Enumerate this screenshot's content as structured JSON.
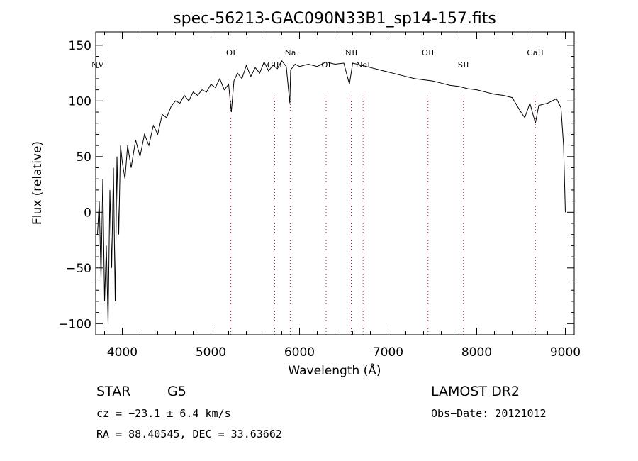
{
  "chart_data": {
    "type": "line",
    "title": "spec-56213-GAC090N33B1_sp14-157.fits",
    "xlabel": "Wavelength (Å)",
    "ylabel": "Flux (relative)",
    "xlim": [
      3700,
      9100
    ],
    "ylim": [
      -110,
      162
    ],
    "xticks": [
      4000,
      5000,
      6000,
      7000,
      8000,
      9000
    ],
    "yticks": [
      -100,
      -50,
      0,
      50,
      100,
      150
    ],
    "xtick_labels": [
      "4000",
      "5000",
      "6000",
      "7000",
      "8000",
      "9000"
    ],
    "ytick_labels": [
      "−100",
      "−50",
      "0",
      "50",
      "100",
      "150"
    ],
    "grid": false,
    "series": [
      {
        "x": [
          3720,
          3740,
          3760,
          3780,
          3800,
          3820,
          3840,
          3860,
          3880,
          3900,
          3920,
          3940,
          3960,
          3980,
          4000,
          4030,
          4060,
          4100,
          4150,
          4200,
          4250,
          4300,
          4350,
          4400,
          4450,
          4500,
          4550,
          4600,
          4650,
          4700,
          4750,
          4800,
          4850,
          4900,
          4950,
          5000,
          5050,
          5100,
          5150,
          5200,
          5230,
          5260,
          5300,
          5350,
          5400,
          5450,
          5500,
          5550,
          5600,
          5650,
          5700,
          5750,
          5800,
          5850,
          5890,
          5900,
          5950,
          6000,
          6100,
          6200,
          6300,
          6400,
          6500,
          6563,
          6600,
          6700,
          6800,
          6900,
          7000,
          7100,
          7200,
          7300,
          7400,
          7500,
          7600,
          7700,
          7800,
          7900,
          8000,
          8100,
          8200,
          8300,
          8400,
          8498,
          8542,
          8600,
          8662,
          8700,
          8800,
          8900,
          8950,
          8980,
          9000
        ],
        "y": [
          -20,
          10,
          -60,
          30,
          -80,
          -30,
          -100,
          20,
          -50,
          40,
          -80,
          50,
          -20,
          60,
          45,
          30,
          60,
          40,
          65,
          50,
          70,
          60,
          78,
          70,
          88,
          85,
          95,
          100,
          98,
          105,
          100,
          108,
          105,
          110,
          108,
          115,
          112,
          120,
          110,
          115,
          90,
          118,
          125,
          120,
          132,
          122,
          130,
          125,
          135,
          127,
          132,
          129,
          136,
          131,
          98,
          128,
          133,
          131,
          133,
          131,
          135,
          133,
          134,
          115,
          134,
          132,
          130,
          128,
          126,
          124,
          122,
          120,
          119,
          118,
          116,
          114,
          113,
          111,
          110,
          108,
          106,
          105,
          103,
          90,
          85,
          98,
          80,
          96,
          98,
          102,
          94,
          60,
          0
        ]
      }
    ],
    "line_markers": [
      {
        "label": "NV",
        "x": 3720
      },
      {
        "label": "OI",
        "x": 5225
      },
      {
        "label": "CIII",
        "x": 5720
      },
      {
        "label": "Na",
        "x": 5895
      },
      {
        "label": "OI",
        "x": 6300
      },
      {
        "label": "NII",
        "x": 6584
      },
      {
        "label": "NeI",
        "x": 6717
      },
      {
        "label": "OII",
        "x": 7450
      },
      {
        "label": "SII",
        "x": 7850
      },
      {
        "label": "CaII",
        "x": 8662
      }
    ]
  },
  "info": {
    "class": "STAR",
    "subclass": "G5",
    "survey": "LAMOST DR2",
    "cz": "cz = −23.1 ± 6.4 km/s",
    "obs_date": "Obs−Date: 20121012",
    "radec": "RA =  88.40545, DEC =  33.63662"
  }
}
